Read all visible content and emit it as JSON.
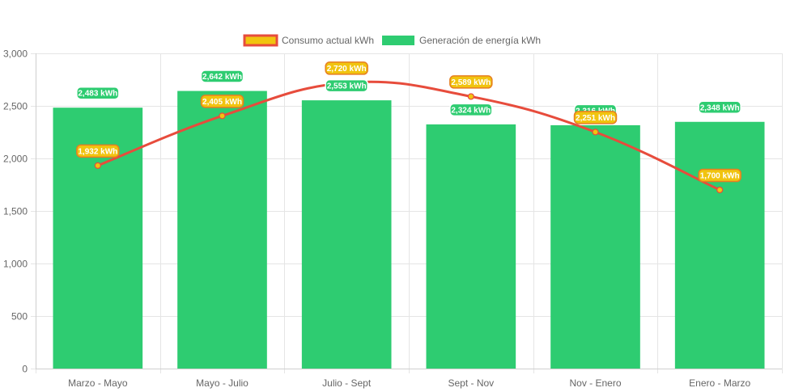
{
  "chart_data": {
    "type": "bar",
    "title": "",
    "xlabel": "",
    "ylabel": "",
    "ylim": [
      0,
      3000
    ],
    "yticks": [
      0,
      500,
      1000,
      1500,
      2000,
      2500,
      3000
    ],
    "ytick_labels": [
      "0",
      "500",
      "1,000",
      "1,500",
      "2,000",
      "2,500",
      "3,000"
    ],
    "grid": true,
    "legend_position": "top",
    "categories": [
      "Marzo - Mayo",
      "Mayo - Julio",
      "Julio - Sept",
      "Sept - Nov",
      "Nov - Enero",
      "Enero - Marzo"
    ],
    "series": [
      {
        "name": "Consumo actual kWh",
        "type": "line",
        "color": "#e74c3c",
        "fill": "#f1c40f",
        "label_bg": "#f1c40f",
        "label_border": "#e67e22",
        "values": [
          1932,
          2405,
          2720,
          2589,
          2251,
          1700
        ],
        "labels": [
          "1,932 kWh",
          "2,405 kWh",
          "2,720 kWh",
          "2,589 kWh",
          "2,251 kWh",
          "1,700 kWh"
        ]
      },
      {
        "name": "Generación de energía kWh",
        "type": "bar",
        "color": "#2ecc71",
        "label_bg": "#2ecc71",
        "label_border": "#ffffff",
        "values": [
          2483,
          2642,
          2553,
          2324,
          2316,
          2348
        ],
        "labels": [
          "2,483 kWh",
          "2,642 kWh",
          "2,553 kWh",
          "2,324 kWh",
          "2,316 kWh",
          "2,348 kWh"
        ]
      }
    ]
  }
}
